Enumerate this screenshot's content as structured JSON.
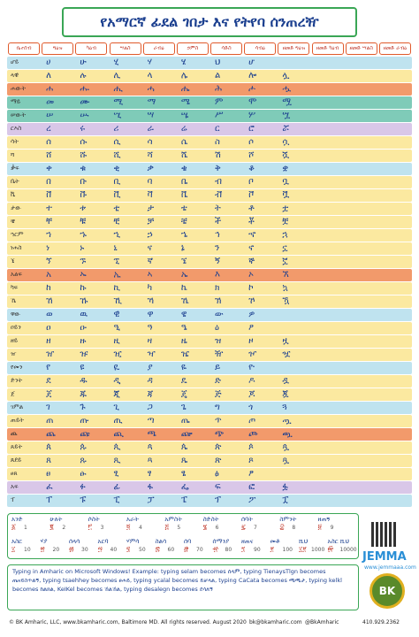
{
  "header": {
    "title": "የአማርኛ ፊደል ገበታ እና የትየባ ሰንጠረዥ"
  },
  "columns": [
    "ቤተሰብ",
    "ግዕዝ",
    "ካዕብ",
    "ሣልስ",
    "ራብዕ",
    "ኃምስ",
    "ሳድስ",
    "ሳብዕ",
    "ዘመድ ግዕዝ",
    "ዘመድ ካዕብ",
    "ዘመድ ሣልስ",
    "ዘመድ ራብዕ"
  ],
  "rows": [
    {
      "label": "ሆይ",
      "color": "#bfe3ef",
      "chars": [
        "ሀ",
        "ሁ",
        "ሂ",
        "ሃ",
        "ሄ",
        "ህ",
        "ሆ"
      ]
    },
    {
      "label": "ላዊ",
      "color": "#fbe9a0",
      "chars": [
        "ለ",
        "ሉ",
        "ሊ",
        "ላ",
        "ሌ",
        "ል",
        "ሎ",
        "ሏ"
      ]
    },
    {
      "label": "ሐውት",
      "color": "#f29a6b",
      "chars": [
        "ሐ",
        "ሑ",
        "ሒ",
        "ሓ",
        "ሔ",
        "ሕ",
        "ሖ",
        "ሗ"
      ]
    },
    {
      "label": "ማይ",
      "color": "#7fcbb8",
      "chars": [
        "መ",
        "ሙ",
        "ሚ",
        "ማ",
        "ሜ",
        "ም",
        "ሞ",
        "ሟ"
      ]
    },
    {
      "label": "ሠውት",
      "color": "#7fcbb8",
      "chars": [
        "ሠ",
        "ሡ",
        "ሢ",
        "ሣ",
        "ሤ",
        "ሥ",
        "ሦ",
        "ሧ"
      ]
    },
    {
      "label": "ርእስ",
      "color": "#d9c7e8",
      "chars": [
        "ረ",
        "ሩ",
        "ሪ",
        "ራ",
        "ሬ",
        "ር",
        "ሮ",
        "ሯ"
      ]
    },
    {
      "label": "ሳት",
      "color": "#fbe9a0",
      "chars": [
        "ሰ",
        "ሱ",
        "ሲ",
        "ሳ",
        "ሴ",
        "ስ",
        "ሶ",
        "ሷ"
      ]
    },
    {
      "label": "ሻ",
      "color": "#fbe9a0",
      "chars": [
        "ሸ",
        "ሹ",
        "ሺ",
        "ሻ",
        "ሼ",
        "ሽ",
        "ሾ",
        "ሿ"
      ]
    },
    {
      "label": "ቃፍ",
      "color": "#bfe3ef",
      "chars": [
        "ቀ",
        "ቁ",
        "ቂ",
        "ቃ",
        "ቄ",
        "ቅ",
        "ቆ",
        "ቋ"
      ]
    },
    {
      "label": "ቤት",
      "color": "#fbe9a0",
      "chars": [
        "በ",
        "ቡ",
        "ቢ",
        "ባ",
        "ቤ",
        "ብ",
        "ቦ",
        "ቧ"
      ]
    },
    {
      "label": "ቬ",
      "color": "#fbe9a0",
      "chars": [
        "ቨ",
        "ቩ",
        "ቪ",
        "ቫ",
        "ቬ",
        "ቭ",
        "ቮ",
        "ቯ"
      ]
    },
    {
      "label": "ታው",
      "color": "#fbe9a0",
      "chars": [
        "ተ",
        "ቱ",
        "ቲ",
        "ታ",
        "ቴ",
        "ት",
        "ቶ",
        "ቷ"
      ]
    },
    {
      "label": "ቼ",
      "color": "#fbe9a0",
      "chars": [
        "ቸ",
        "ቹ",
        "ቺ",
        "ቻ",
        "ቼ",
        "ች",
        "ቾ",
        "ቿ"
      ]
    },
    {
      "label": "ኀርም",
      "color": "#fbe9a0",
      "chars": [
        "ኀ",
        "ኁ",
        "ኂ",
        "ኃ",
        "ኄ",
        "ኅ",
        "ኆ",
        "ኋ"
      ]
    },
    {
      "label": "ነሐስ",
      "color": "#fbe9a0",
      "chars": [
        "ነ",
        "ኑ",
        "ኒ",
        "ና",
        "ኔ",
        "ን",
        "ኖ",
        "ኗ"
      ]
    },
    {
      "label": "ኜ",
      "color": "#fbe9a0",
      "chars": [
        "ኘ",
        "ኙ",
        "ኚ",
        "ኛ",
        "ኜ",
        "ኝ",
        "ኞ",
        "ኟ"
      ]
    },
    {
      "label": "አልፍ",
      "color": "#f29a6b",
      "chars": [
        "አ",
        "ኡ",
        "ኢ",
        "ኣ",
        "ኤ",
        "እ",
        "ኦ",
        "ኧ"
      ]
    },
    {
      "label": "ካፍ",
      "color": "#fbe9a0",
      "chars": [
        "ከ",
        "ኩ",
        "ኪ",
        "ካ",
        "ኬ",
        "ክ",
        "ኮ",
        "ኳ"
      ]
    },
    {
      "label": "ኼ",
      "color": "#fbe9a0",
      "chars": [
        "ኸ",
        "ኹ",
        "ኺ",
        "ኻ",
        "ኼ",
        "ኽ",
        "ኾ",
        "ዃ"
      ]
    },
    {
      "label": "ዋው",
      "color": "#bfe3ef",
      "chars": [
        "ወ",
        "ዉ",
        "ዊ",
        "ዋ",
        "ዌ",
        "ው",
        "ዎ"
      ]
    },
    {
      "label": "ዐይን",
      "color": "#fbe9a0",
      "chars": [
        "ዐ",
        "ዑ",
        "ዒ",
        "ዓ",
        "ዔ",
        "ዕ",
        "ዖ"
      ]
    },
    {
      "label": "ዘይ",
      "color": "#fbe9a0",
      "chars": [
        "ዘ",
        "ዙ",
        "ዚ",
        "ዛ",
        "ዜ",
        "ዝ",
        "ዞ",
        "ዟ"
      ]
    },
    {
      "label": "ዠ",
      "color": "#fbe9a0",
      "chars": [
        "ዠ",
        "ዡ",
        "ዢ",
        "ዣ",
        "ዤ",
        "ዥ",
        "ዦ",
        "ዧ"
      ]
    },
    {
      "label": "የመን",
      "color": "#bfe3ef",
      "chars": [
        "የ",
        "ዩ",
        "ዪ",
        "ያ",
        "ዬ",
        "ይ",
        "ዮ"
      ]
    },
    {
      "label": "ድንት",
      "color": "#fbe9a0",
      "chars": [
        "ደ",
        "ዱ",
        "ዲ",
        "ዳ",
        "ዴ",
        "ድ",
        "ዶ",
        "ዷ"
      ]
    },
    {
      "label": "ጀ",
      "color": "#fbe9a0",
      "chars": [
        "ጀ",
        "ጁ",
        "ጂ",
        "ጃ",
        "ጄ",
        "ጅ",
        "ጆ",
        "ጇ"
      ]
    },
    {
      "label": "ገምል",
      "color": "#bfe3ef",
      "chars": [
        "ገ",
        "ጉ",
        "ጊ",
        "ጋ",
        "ጌ",
        "ግ",
        "ጎ",
        "ጓ"
      ]
    },
    {
      "label": "ጠይት",
      "color": "#fbe9a0",
      "chars": [
        "ጠ",
        "ጡ",
        "ጢ",
        "ጣ",
        "ጤ",
        "ጥ",
        "ጦ",
        "ጧ"
      ]
    },
    {
      "label": "ጨ",
      "color": "#f29a6b",
      "chars": [
        "ጨ",
        "ጩ",
        "ጪ",
        "ጫ",
        "ጬ",
        "ጭ",
        "ጮ",
        "ጯ"
      ]
    },
    {
      "label": "ጰይት",
      "color": "#fbe9a0",
      "chars": [
        "ጰ",
        "ጱ",
        "ጲ",
        "ጳ",
        "ጴ",
        "ጵ",
        "ጶ",
        "ጷ"
      ]
    },
    {
      "label": "ጸደይ",
      "color": "#fbe9a0",
      "chars": [
        "ጸ",
        "ጹ",
        "ጺ",
        "ጻ",
        "ጼ",
        "ጽ",
        "ጾ",
        "ጿ"
      ]
    },
    {
      "label": "ፀጰ",
      "color": "#fbe9a0",
      "chars": [
        "ፀ",
        "ፁ",
        "ፂ",
        "ፃ",
        "ፄ",
        "ፅ",
        "ፆ"
      ]
    },
    {
      "label": "አፍ",
      "color": "#d9c7e8",
      "chars": [
        "ፈ",
        "ፉ",
        "ፊ",
        "ፋ",
        "ፌ",
        "ፍ",
        "ፎ",
        "ፏ"
      ]
    },
    {
      "label": "ፐ",
      "color": "#bfe3ef",
      "chars": [
        "ፐ",
        "ፑ",
        "ፒ",
        "ፓ",
        "ፔ",
        "ፕ",
        "ፖ",
        "ፗ"
      ]
    }
  ],
  "numbers": [
    [
      {
        "word": "አንድ",
        "numeral": "፩",
        "digit": "1"
      },
      {
        "word": "ሁለት",
        "numeral": "፪",
        "digit": "2"
      },
      {
        "word": "ሶስት",
        "numeral": "፫",
        "digit": "3"
      },
      {
        "word": "አራት",
        "numeral": "፬",
        "digit": "4"
      },
      {
        "word": "አምስት",
        "numeral": "፭",
        "digit": "5"
      },
      {
        "word": "ስድስት",
        "numeral": "፮",
        "digit": "6"
      },
      {
        "word": "ሰባት",
        "numeral": "፯",
        "digit": "7"
      },
      {
        "word": "ስምንት",
        "numeral": "፰",
        "digit": "8"
      },
      {
        "word": "ዘጠኝ",
        "numeral": "፱",
        "digit": "9"
      }
    ],
    [
      {
        "word": "አስር",
        "numeral": "፲",
        "digit": "10"
      },
      {
        "word": "ሃያ",
        "numeral": "፳",
        "digit": "20"
      },
      {
        "word": "ሰላሳ",
        "numeral": "፴",
        "digit": "30"
      },
      {
        "word": "አርባ",
        "numeral": "፵",
        "digit": "40"
      },
      {
        "word": "ሃምሳ",
        "numeral": "፶",
        "digit": "50"
      },
      {
        "word": "ስልሳ",
        "numeral": "፷",
        "digit": "60"
      },
      {
        "word": "ሰባ",
        "numeral": "፸",
        "digit": "70"
      },
      {
        "word": "ሰማንያ",
        "numeral": "፹",
        "digit": "80"
      },
      {
        "word": "ዘጠና",
        "numeral": "፺",
        "digit": "90"
      },
      {
        "word": "መቶ",
        "numeral": "፻",
        "digit": "100"
      },
      {
        "word": "ሺህ",
        "numeral": "፲፻",
        "digit": "1000"
      },
      {
        "word": "አስር ሺህ",
        "numeral": "፼",
        "digit": "10000"
      }
    ]
  ],
  "instructions": "Typing in Amharic on Microsoft Windows! Example: typing selam becomes ሰላም, typing TienaysTlgn becomes ጤናይስጥልኝ, typing tsaehhey becomes ፀሐይ, typing ycalal becomes ይቻላል, typing CaCata becomes ጫጫታ, typing kelkl becomes ከልክል, KeIKel becomes ኸልኸል, typing desalegn becomes ደሳለኝ",
  "logo": {
    "brand": "JEMMA",
    "url": "www.jemmaaa.com",
    "badge": "BK"
  },
  "footer": {
    "copyright": "© BK Amharic, LLC, www.bkamharic.com, Baltimore MD. All rights reserved. August 2020",
    "email": "bk@bkamharic.com",
    "twitter": "@BkAmharic",
    "phone": "410.929.2362"
  }
}
